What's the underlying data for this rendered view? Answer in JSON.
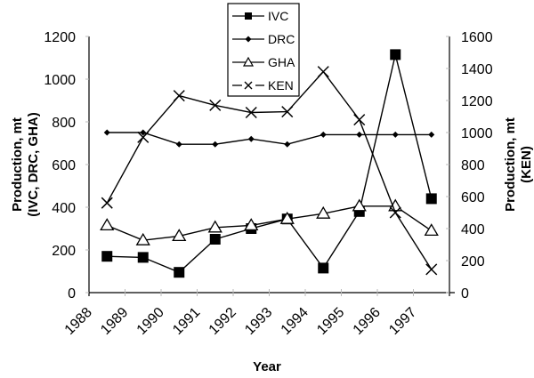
{
  "chart_data": {
    "type": "line",
    "title": "",
    "xlabel": "Year",
    "ylabel_left": "Production, mt (IVC, DRC, GHA)",
    "ylabel_left_lines": [
      "Production, mt",
      "(IVC, DRC, GHA)"
    ],
    "ylabel_right": "Production, mt (KEN)",
    "ylabel_right_lines": [
      "Production, mt",
      "(KEN)"
    ],
    "categories": [
      "1988",
      "1989",
      "1990",
      "1991",
      "1992",
      "1993",
      "1994",
      "1995",
      "1996",
      "1997"
    ],
    "ylim_left": [
      0,
      1200
    ],
    "yticks_left": [
      0,
      200,
      400,
      600,
      800,
      1000,
      1200
    ],
    "ylim_right": [
      0,
      1600
    ],
    "yticks_right": [
      0,
      200,
      400,
      600,
      800,
      1000,
      1200,
      1400,
      1600
    ],
    "grid": false,
    "legend_position": "top-center",
    "series": [
      {
        "name": "IVC",
        "axis": "left",
        "marker": "square-filled",
        "line": "solid",
        "values": [
          170,
          165,
          95,
          250,
          300,
          345,
          115,
          380,
          1115,
          440
        ]
      },
      {
        "name": "DRC",
        "axis": "left",
        "marker": "diamond-small",
        "line": "solid",
        "values": [
          750,
          750,
          695,
          695,
          720,
          695,
          740,
          740,
          740,
          740
        ]
      },
      {
        "name": "GHA",
        "axis": "left",
        "marker": "triangle-open",
        "line": "solid",
        "values": [
          315,
          245,
          265,
          305,
          315,
          345,
          370,
          405,
          405,
          290
        ]
      },
      {
        "name": "KEN",
        "axis": "right",
        "marker": "x",
        "line": "solid",
        "values": [
          560,
          970,
          1230,
          1170,
          1125,
          1130,
          1380,
          1080,
          500,
          145
        ]
      }
    ]
  }
}
